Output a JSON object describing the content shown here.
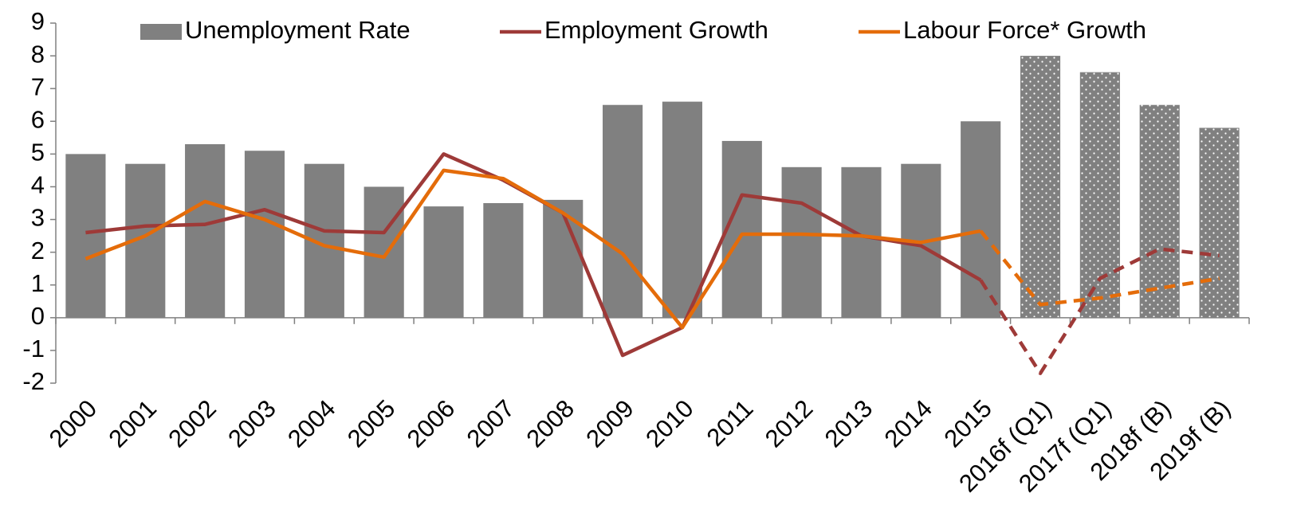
{
  "chart_data": {
    "type": "bar_line",
    "categories": [
      "2000",
      "2001",
      "2002",
      "2003",
      "2004",
      "2005",
      "2006",
      "2007",
      "2008",
      "2009",
      "2010",
      "2011",
      "2012",
      "2013",
      "2014",
      "2015",
      "2016f (Q1)",
      "2017f (Q1)",
      "2018f (B)",
      "2019f (B)"
    ],
    "series": [
      {
        "name": "Unemployment Rate",
        "type": "bar",
        "color": "#808080",
        "values": [
          5.0,
          4.7,
          5.3,
          5.1,
          4.7,
          4.0,
          3.4,
          3.5,
          3.6,
          6.5,
          6.6,
          5.4,
          4.6,
          4.6,
          4.7,
          6.0,
          8.0,
          7.5,
          6.5,
          5.8
        ]
      },
      {
        "name": "Employment Growth",
        "type": "line",
        "color": "#9e3a38",
        "values": [
          2.6,
          2.8,
          2.85,
          3.3,
          2.65,
          2.6,
          5.0,
          4.2,
          3.2,
          -1.15,
          -0.3,
          3.75,
          3.5,
          2.5,
          2.2,
          1.15,
          -1.7,
          1.2,
          2.1,
          1.9
        ]
      },
      {
        "name": "Labour Force* Growth",
        "type": "line",
        "color": "#e46c0a",
        "values": [
          1.8,
          2.5,
          3.55,
          3.0,
          2.2,
          1.85,
          4.5,
          4.25,
          3.2,
          1.95,
          -0.3,
          2.55,
          2.55,
          2.5,
          2.3,
          2.65,
          0.4,
          0.6,
          0.9,
          1.2
        ]
      }
    ],
    "forecast_start": 16,
    "ylim": [
      -2,
      9
    ],
    "yticks": [
      -2,
      -1,
      0,
      1,
      2,
      3,
      4,
      5,
      6,
      7,
      8,
      9
    ],
    "legend": "top"
  }
}
